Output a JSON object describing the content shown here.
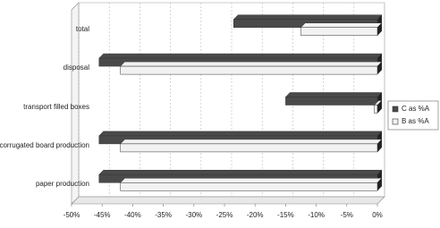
{
  "chart_data": {
    "type": "bar",
    "orientation": "horizontal",
    "categories": [
      "total",
      "disposal",
      "transport filled boxes",
      "corrugated board production",
      "paper production"
    ],
    "series": [
      {
        "name": "C as %A",
        "color": "#4a4a4a",
        "values": [
          -23.5,
          -45.5,
          -15,
          -45.5,
          -45.5
        ]
      },
      {
        "name": "B as %A",
        "color": "#f2f2f2",
        "values": [
          -12.5,
          -42,
          -0.5,
          -42,
          -42
        ]
      }
    ],
    "xlim": [
      -50,
      0
    ],
    "xticks": [
      {
        "value": -50,
        "label": "-50%"
      },
      {
        "value": -45,
        "label": "-45%"
      },
      {
        "value": -40,
        "label": "-40%"
      },
      {
        "value": -35,
        "label": "-35%"
      },
      {
        "value": -30,
        "label": "-30%"
      },
      {
        "value": -25,
        "label": "-25%"
      },
      {
        "value": -20,
        "label": "-20%"
      },
      {
        "value": -15,
        "label": "-15%"
      },
      {
        "value": -10,
        "label": "-10%"
      },
      {
        "value": -5,
        "label": "-5%"
      },
      {
        "value": 0,
        "label": "0%"
      }
    ],
    "grid": true,
    "legend": "right"
  }
}
